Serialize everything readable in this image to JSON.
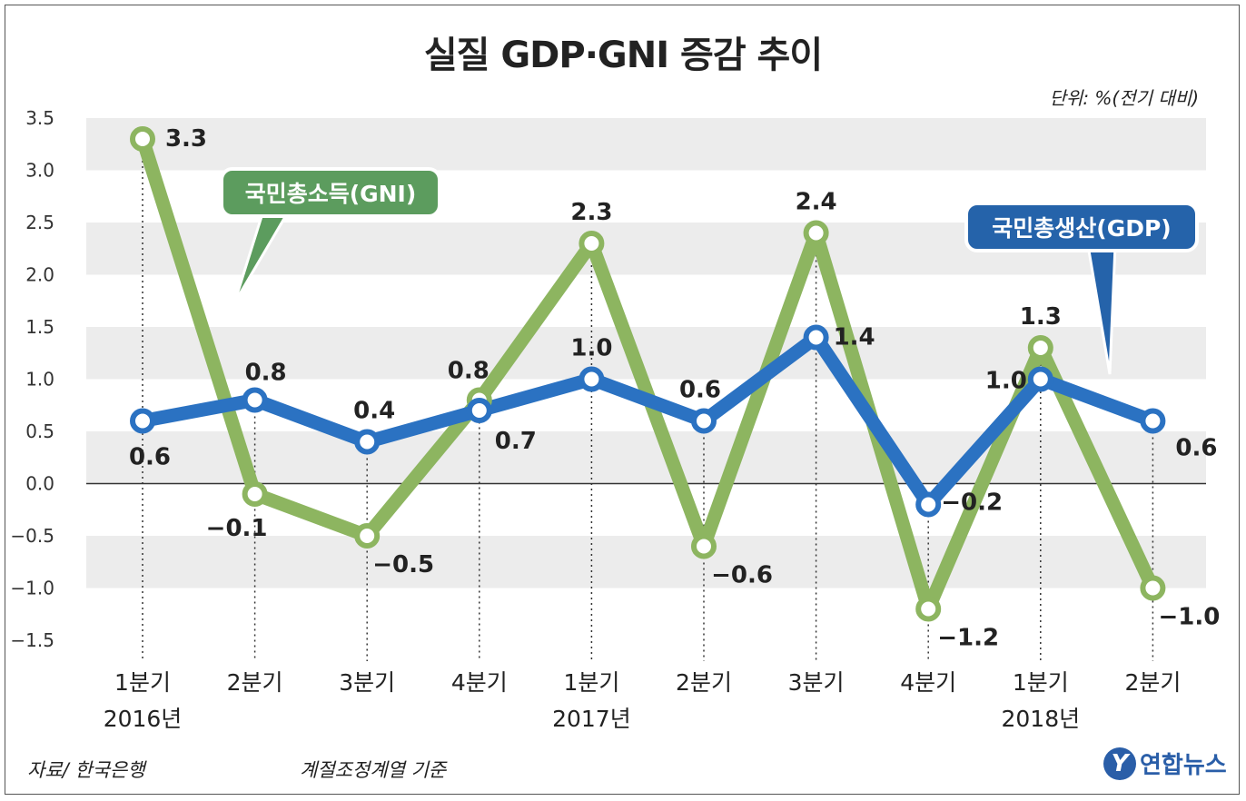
{
  "title": "실질 GDP·GNI 증감 추이",
  "unit": "단위: %(전기 대비)",
  "source": "자료/ 한국은행",
  "note": "계절조정계열 기준",
  "logo": {
    "text": "연합뉴스",
    "mark": "Y"
  },
  "colors": {
    "gdp": "#2b72c2",
    "gni": "#8db560",
    "gni_callout": "#5c9c5e",
    "gdp_callout": "#2563aa",
    "band": "#ececec",
    "zero": "#333333"
  },
  "chart_data": {
    "type": "line",
    "title": "실질 GDP·GNI 증감 추이",
    "ylim": [
      -1.5,
      3.5
    ],
    "yticks": [
      "3.5",
      "3.0",
      "2.5",
      "2.0",
      "1.5",
      "1.0",
      "0.5",
      "0.0",
      "−0.5",
      "−1.0",
      "−1.5"
    ],
    "ytick_values": [
      3.5,
      3.0,
      2.5,
      2.0,
      1.5,
      1.0,
      0.5,
      0.0,
      -0.5,
      -1.0,
      -1.5
    ],
    "categories": [
      "1분기",
      "2분기",
      "3분기",
      "4분기",
      "1분기",
      "2분기",
      "3분기",
      "4분기",
      "1분기",
      "2분기"
    ],
    "years": [
      {
        "label": "2016년",
        "index": 0
      },
      {
        "label": "2017년",
        "index": 4
      },
      {
        "label": "2018년",
        "index": 8
      }
    ],
    "series": [
      {
        "name": "국민총소득(GNI)",
        "values": [
          3.3,
          -0.1,
          -0.5,
          0.8,
          2.3,
          -0.6,
          2.4,
          -1.2,
          1.3,
          -1.0
        ],
        "labels": [
          "3.3",
          "−0.1",
          "−0.5",
          "0.8",
          "2.3",
          "−0.6",
          "2.4",
          "−1.2",
          "1.3",
          "−1.0"
        ]
      },
      {
        "name": "국민총생산(GDP)",
        "values": [
          0.6,
          0.8,
          0.4,
          0.7,
          1.0,
          0.6,
          1.4,
          -0.2,
          1.0,
          0.6
        ],
        "labels": [
          "0.6",
          "0.8",
          "0.4",
          "0.7",
          "1.0",
          "0.6",
          "1.4",
          "−0.2",
          "1.0",
          "0.6"
        ]
      }
    ]
  }
}
